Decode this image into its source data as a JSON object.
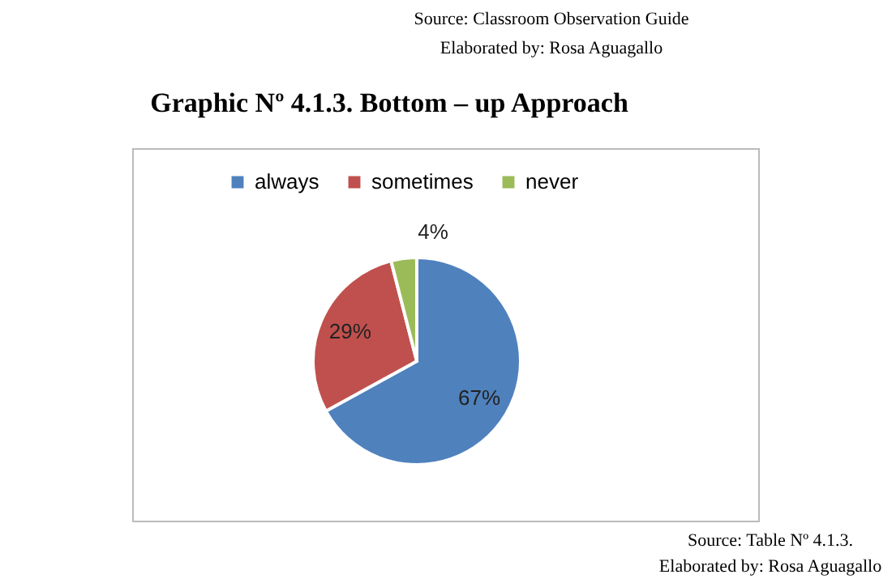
{
  "chart_data": {
    "type": "pie",
    "title": "Graphic Nº 4.1.3. Bottom – up Approach",
    "categories": [
      "always",
      "sometimes",
      "never"
    ],
    "values": [
      67,
      29,
      4
    ],
    "colors": [
      "#4f81bd",
      "#c0504d",
      "#9bbb59"
    ],
    "value_labels": [
      "67%",
      "29%",
      "4%"
    ],
    "legend": "top",
    "annotations": [
      "Source: Classroom Observation Guide",
      "Elaborated by: Rosa Aguagallo",
      "Source: Table Nº 4.1.3.",
      "Elaborated by: Rosa Aguagallo"
    ]
  }
}
